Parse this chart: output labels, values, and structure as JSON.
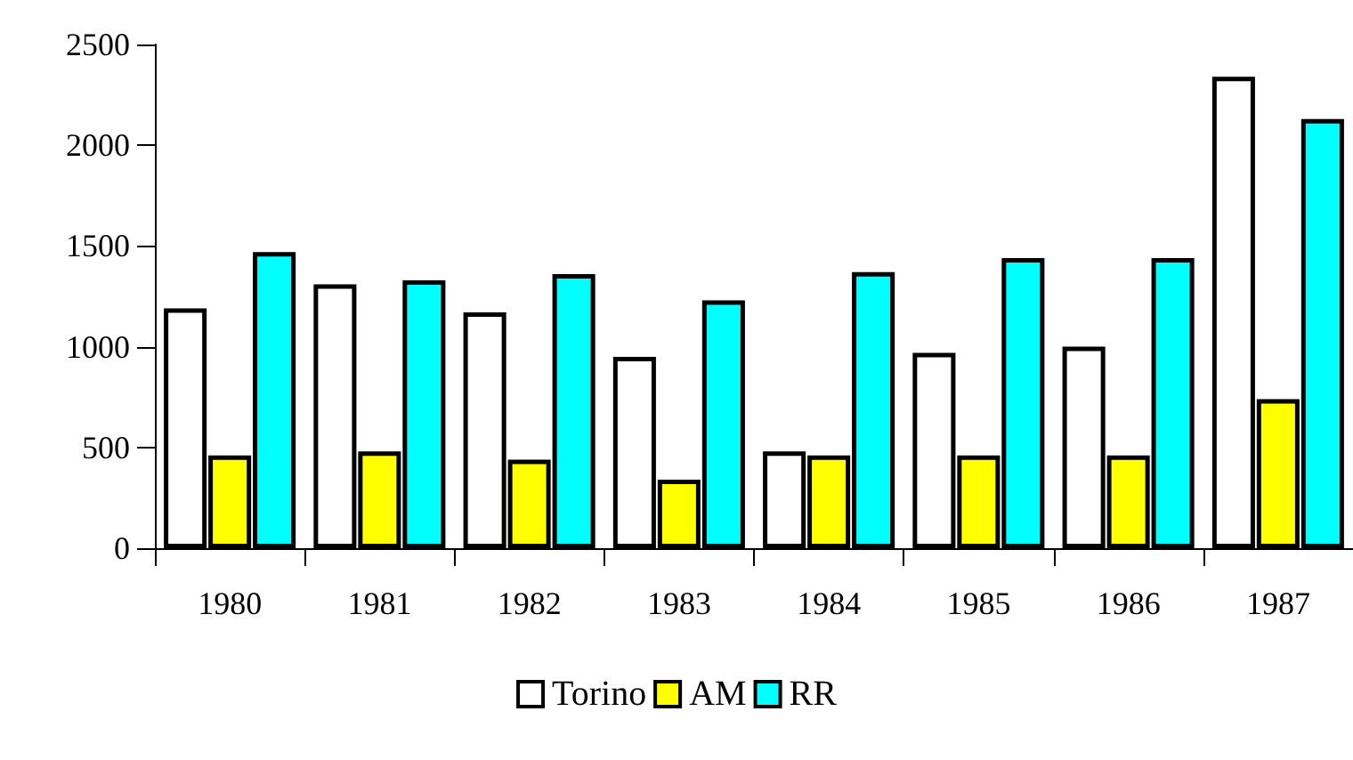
{
  "chart_data": {
    "type": "bar",
    "categories": [
      "1980",
      "1981",
      "1982",
      "1983",
      "1984",
      "1985",
      "1986",
      "1987"
    ],
    "series": [
      {
        "name": "Torino",
        "color": "#ffffff",
        "values": [
          1190,
          1310,
          1170,
          950,
          480,
          970,
          1000,
          2340
        ]
      },
      {
        "name": "AM",
        "color": "#ffff00",
        "values": [
          460,
          480,
          440,
          340,
          460,
          460,
          460,
          740
        ]
      },
      {
        "name": "RR",
        "color": "#00ffff",
        "values": [
          1470,
          1330,
          1360,
          1230,
          1370,
          1440,
          1440,
          2130
        ]
      }
    ],
    "ylim": [
      0,
      2500
    ],
    "yticks": [
      0,
      500,
      1000,
      1500,
      2000,
      2500
    ],
    "grid": false,
    "legend": "bottom"
  }
}
